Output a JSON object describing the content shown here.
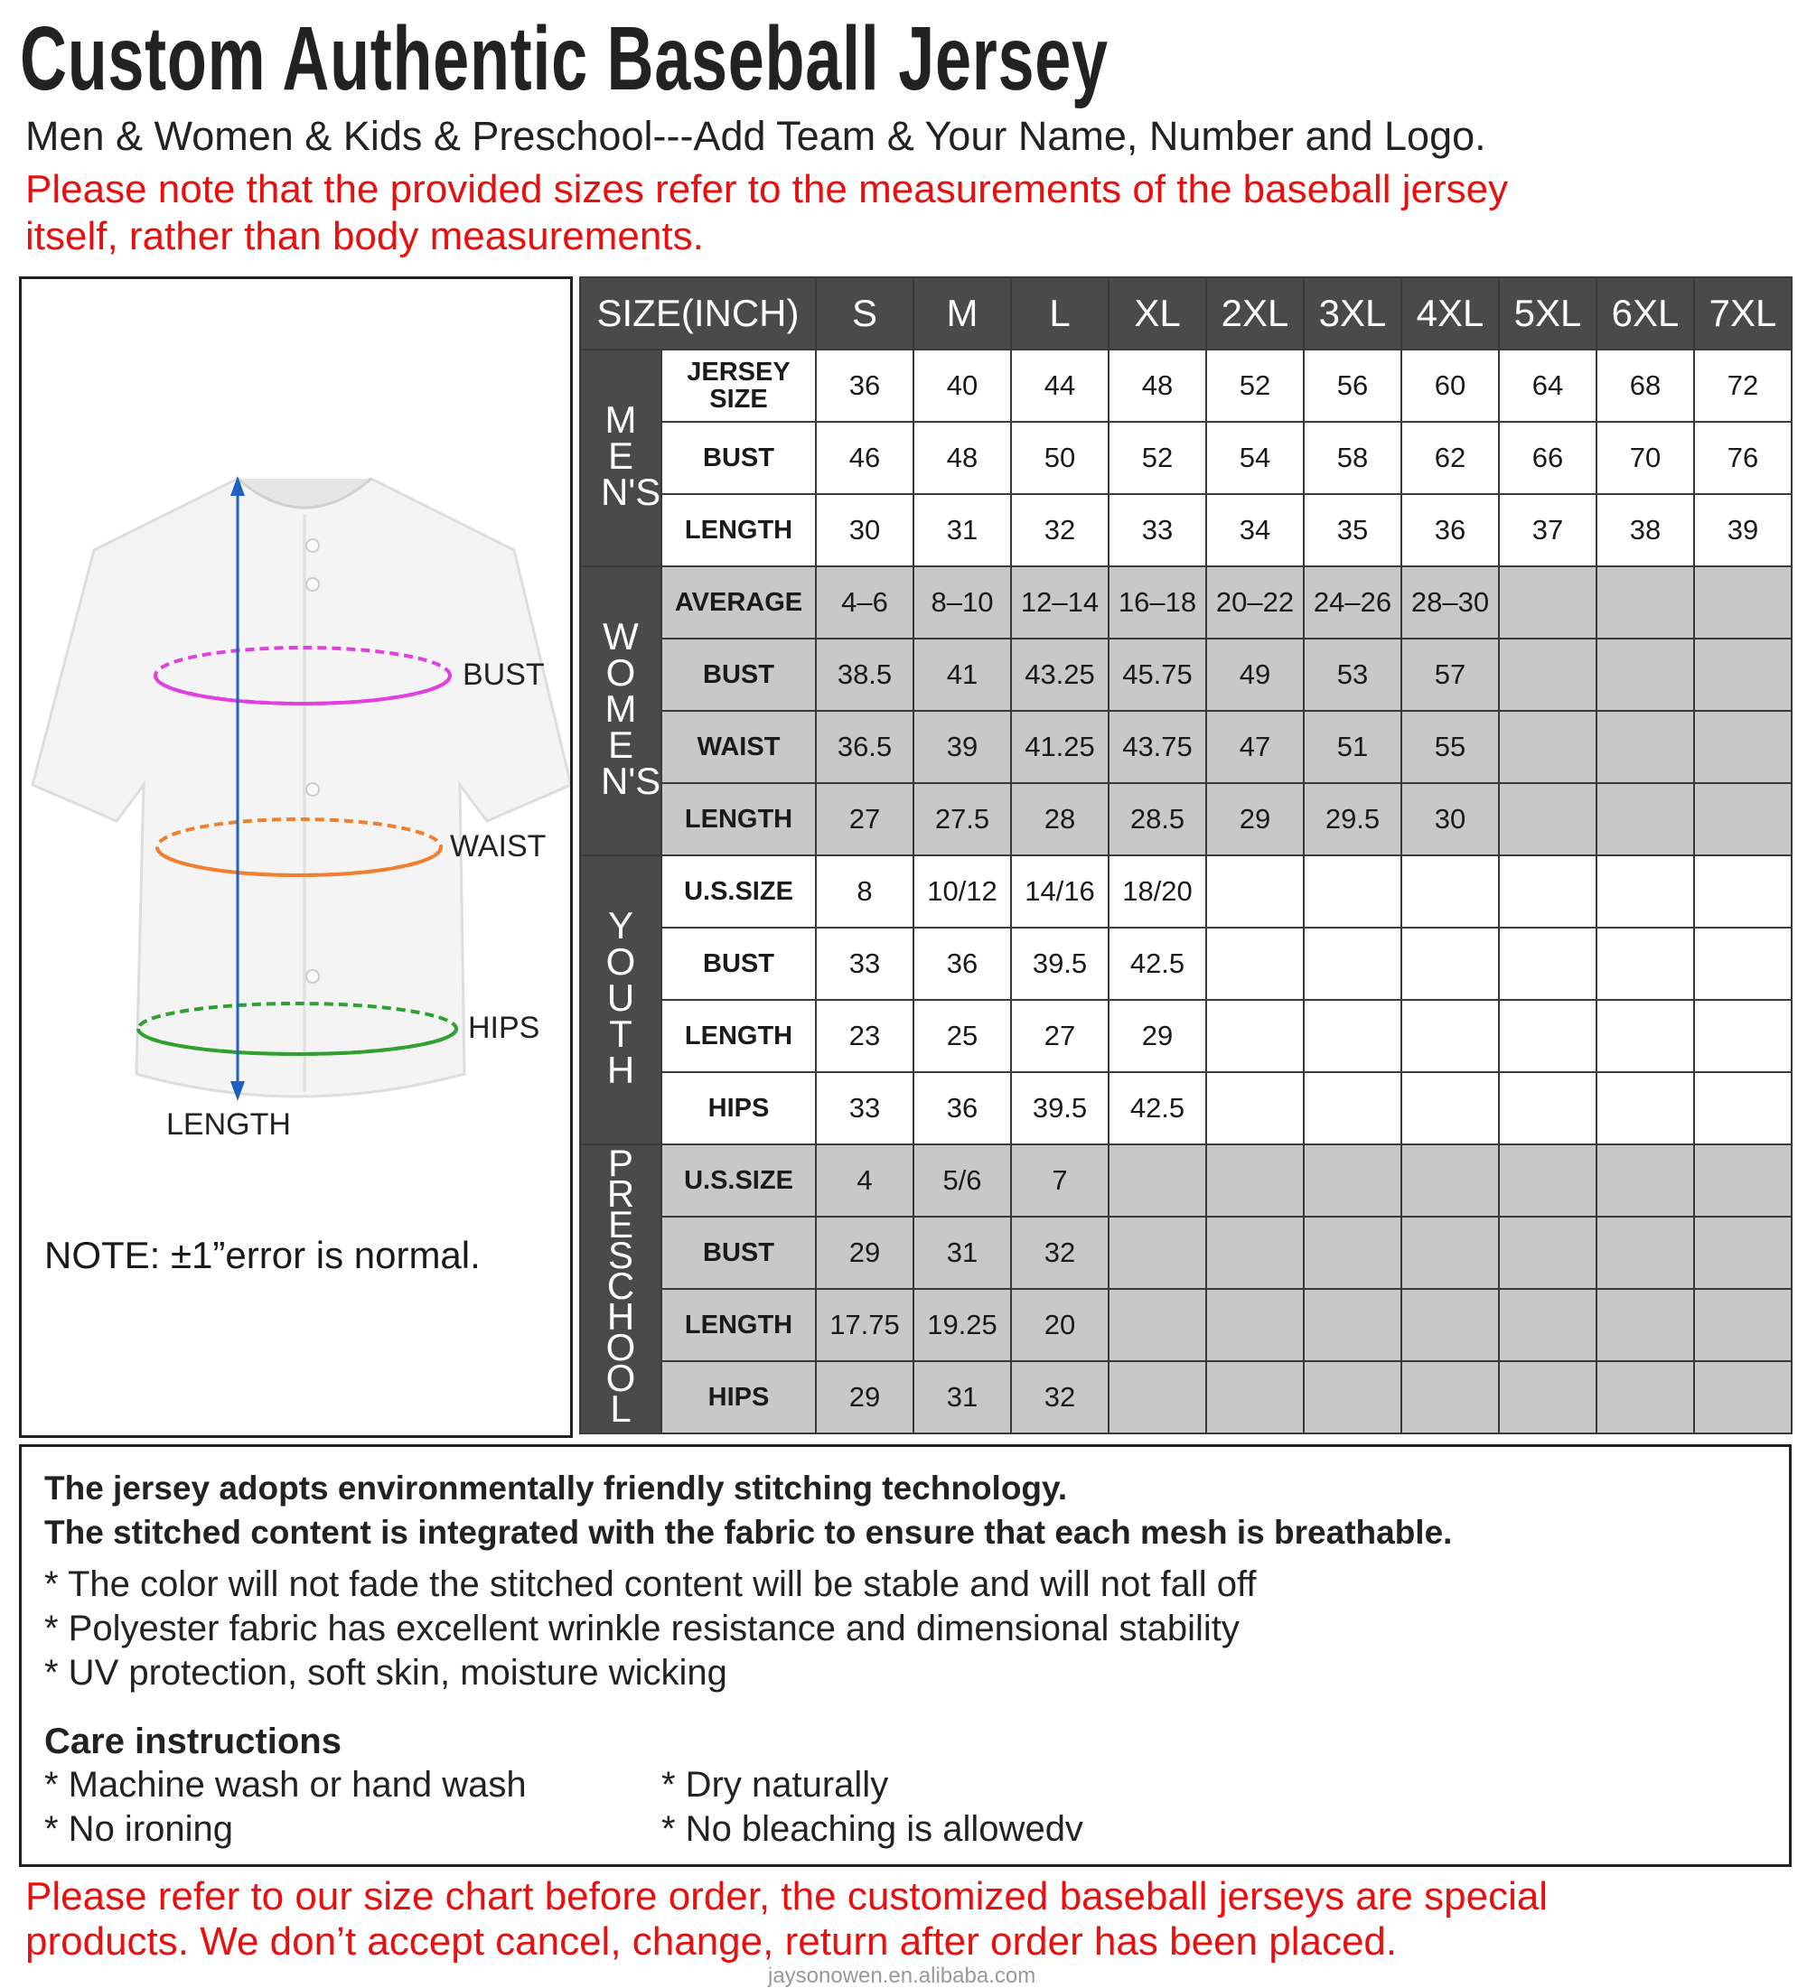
{
  "title": "Custom Authentic Baseball Jersey",
  "subtitle": "Men & Women & Kids & Preschool---Add Team & Your Name, Number and Logo.",
  "notice": [
    "Please note that the provided sizes refer to the measurements of the baseball jersey",
    "itself, rather than body measurements."
  ],
  "diagram": {
    "bust": "BUST",
    "waist": "WAIST",
    "hips": "HIPS",
    "length": "LENGTH",
    "note": "NOTE:  ±1”error is normal.",
    "colors": {
      "bust": "#e040e0",
      "waist": "#f08030",
      "hips": "#30a030",
      "length": "#2060c0"
    }
  },
  "table": {
    "header": "SIZE(INCH)",
    "sizes": [
      "S",
      "M",
      "L",
      "XL",
      "2XL",
      "3XL",
      "4XL",
      "5XL",
      "6XL",
      "7XL"
    ],
    "groups": [
      {
        "name": "MEN'S",
        "letters": [
          "M",
          "E",
          "N",
          "’",
          "S"
        ],
        "shade": "white",
        "rows": [
          {
            "label": "JERSEY SIZE",
            "values": [
              "36",
              "40",
              "44",
              "48",
              "52",
              "56",
              "60",
              "64",
              "68",
              "72"
            ]
          },
          {
            "label": "BUST",
            "values": [
              "46",
              "48",
              "50",
              "52",
              "54",
              "58",
              "62",
              "66",
              "70",
              "76"
            ]
          },
          {
            "label": "LENGTH",
            "values": [
              "30",
              "31",
              "32",
              "33",
              "34",
              "35",
              "36",
              "37",
              "38",
              "39"
            ]
          }
        ]
      },
      {
        "name": "WOMEN'S",
        "letters": [
          "W",
          "O",
          "M",
          "E",
          "N",
          "’",
          "S"
        ],
        "shade": "gray",
        "rows": [
          {
            "label": "AVERAGE",
            "values": [
              "4-6",
              "8-10",
              "12-14",
              "16-18",
              "20-22",
              "24-26",
              "28-30",
              "",
              "",
              ""
            ]
          },
          {
            "label": "BUST",
            "values": [
              "38.5",
              "41",
              "43.25",
              "45.75",
              "49",
              "53",
              "57",
              "",
              "",
              ""
            ]
          },
          {
            "label": "WAIST",
            "values": [
              "36.5",
              "39",
              "41.25",
              "43.75",
              "47",
              "51",
              "55",
              "",
              "",
              ""
            ]
          },
          {
            "label": "LENGTH",
            "values": [
              "27",
              "27.5",
              "28",
              "28.5",
              "29",
              "29.5",
              "30",
              "",
              "",
              ""
            ]
          }
        ]
      },
      {
        "name": "YOUTH",
        "letters": [
          "Y",
          "O",
          "U",
          "T",
          "H"
        ],
        "shade": "white",
        "rows": [
          {
            "label": "U.S.SIZE",
            "values": [
              "8",
              "10/12",
              "14/16",
              "18/20",
              "",
              "",
              "",
              "",
              "",
              ""
            ]
          },
          {
            "label": "BUST",
            "values": [
              "33",
              "36",
              "39.5",
              "42.5",
              "",
              "",
              "",
              "",
              "",
              ""
            ]
          },
          {
            "label": "LENGTH",
            "values": [
              "23",
              "25",
              "27",
              "29",
              "",
              "",
              "",
              "",
              "",
              ""
            ]
          },
          {
            "label": "HIPS",
            "values": [
              "33",
              "36",
              "39.5",
              "42.5",
              "",
              "",
              "",
              "",
              "",
              ""
            ]
          }
        ]
      },
      {
        "name": "PRESCHOOL",
        "letters": [
          "P",
          "R",
          "E",
          "S",
          "C",
          "H",
          "O",
          "O",
          "L"
        ],
        "shade": "gray",
        "rows": [
          {
            "label": "U.S.SIZE",
            "values": [
              "4",
              "5/6",
              "7",
              "",
              "",
              "",
              "",
              "",
              "",
              ""
            ]
          },
          {
            "label": "BUST",
            "values": [
              "29",
              "31",
              "32",
              "",
              "",
              "",
              "",
              "",
              "",
              ""
            ]
          },
          {
            "label": "LENGTH",
            "values": [
              "17.75",
              "19.25",
              "20",
              "",
              "",
              "",
              "",
              "",
              "",
              ""
            ]
          },
          {
            "label": "HIPS",
            "values": [
              "29",
              "31",
              "32",
              "",
              "",
              "",
              "",
              "",
              "",
              ""
            ]
          }
        ]
      }
    ]
  },
  "features": {
    "bold": [
      "The jersey adopts environmentally friendly stitching technology.",
      "The stitched content is integrated with the fabric to ensure that each mesh is breathable."
    ],
    "bullets": [
      "* The color will not fade the stitched content will be stable and will not fall off",
      "* Polyester fabric has excellent wrinkle resistance and dimensional stability",
      "* UV protection, soft skin, moisture wicking"
    ],
    "care_title": "Care instructions",
    "care": [
      "* Machine wash or hand wash",
      "* Dry naturally",
      "* No ironing",
      "* No bleaching is allowedv"
    ]
  },
  "footer": [
    "Please refer to our size chart before order, the customized baseball jerseys are special",
    "products. We don’t accept cancel, change, return after order has been placed."
  ],
  "watermark": "jaysonowen.en.alibaba.com"
}
